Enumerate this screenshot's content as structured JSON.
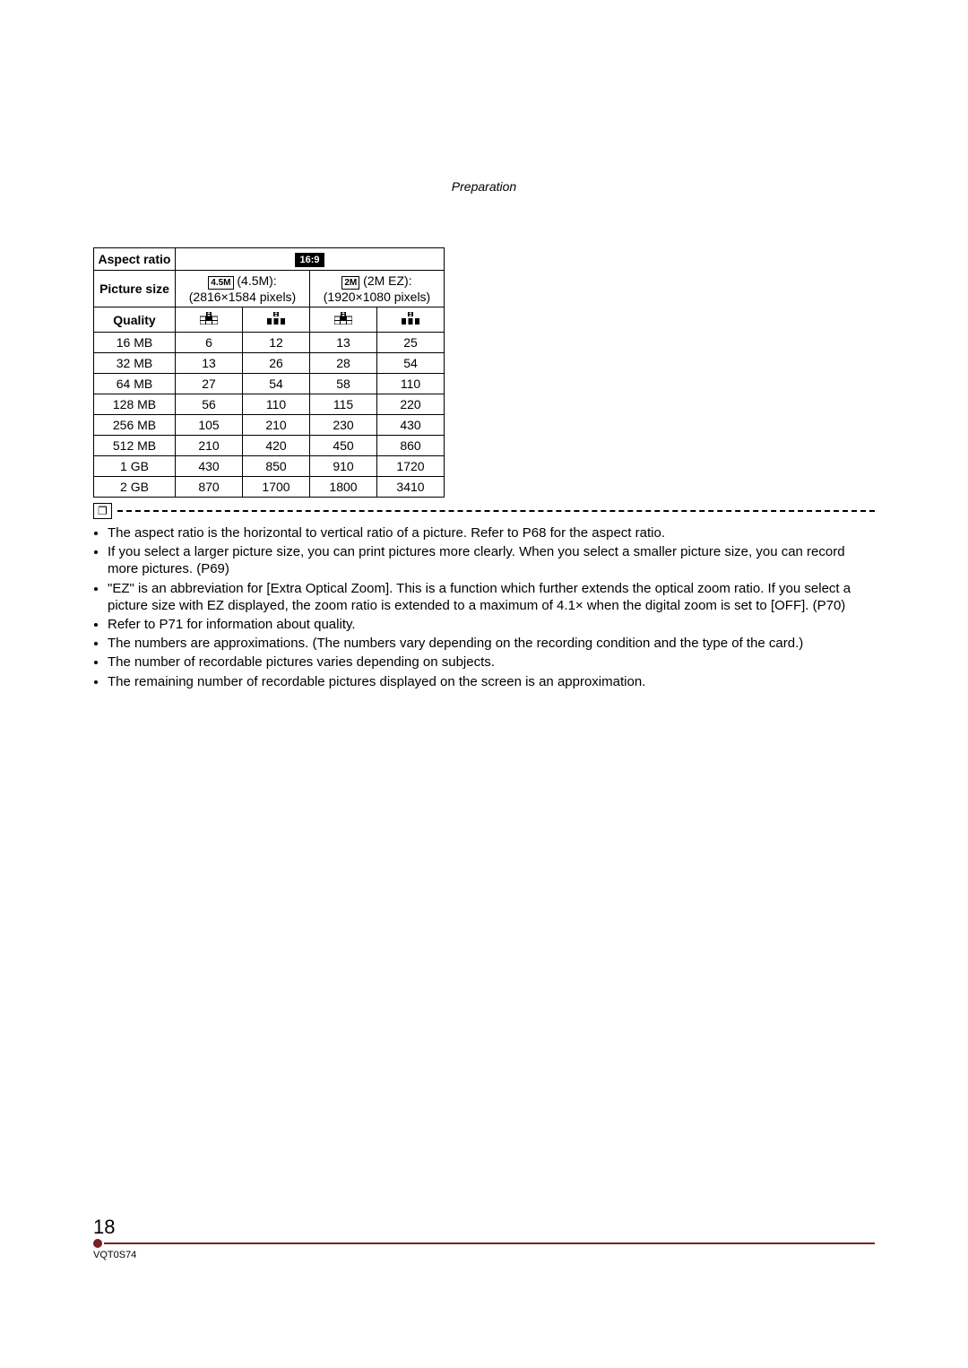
{
  "section_header": "Preparation",
  "table": {
    "headers": {
      "aspect_ratio": "Aspect ratio",
      "picture_size": "Picture size",
      "quality": "Quality"
    },
    "aspect_ratio_badge": "16:9",
    "size_a": {
      "icon": "4.5M",
      "label": "(4.5M):",
      "pixels": "(2816×1584 pixels)"
    },
    "size_b": {
      "icon": "2M",
      "label": "(2M EZ):",
      "pixels": "(1920×1080 pixels)"
    },
    "rows": [
      {
        "cap": "16 MB",
        "a_fine": "6",
        "a_std": "12",
        "b_fine": "13",
        "b_std": "25"
      },
      {
        "cap": "32 MB",
        "a_fine": "13",
        "a_std": "26",
        "b_fine": "28",
        "b_std": "54"
      },
      {
        "cap": "64 MB",
        "a_fine": "27",
        "a_std": "54",
        "b_fine": "58",
        "b_std": "110"
      },
      {
        "cap": "128 MB",
        "a_fine": "56",
        "a_std": "110",
        "b_fine": "115",
        "b_std": "220"
      },
      {
        "cap": "256 MB",
        "a_fine": "105",
        "a_std": "210",
        "b_fine": "230",
        "b_std": "430"
      },
      {
        "cap": "512 MB",
        "a_fine": "210",
        "a_std": "420",
        "b_fine": "450",
        "b_std": "860"
      },
      {
        "cap": "1 GB",
        "a_fine": "430",
        "a_std": "850",
        "b_fine": "910",
        "b_std": "1720"
      },
      {
        "cap": "2 GB",
        "a_fine": "870",
        "a_std": "1700",
        "b_fine": "1800",
        "b_std": "3410"
      }
    ]
  },
  "notes": [
    "The aspect ratio is the horizontal to vertical ratio of a picture. Refer to P68 for the aspect ratio.",
    "If you select a larger picture size, you can print pictures more clearly. When you select a smaller picture size, you can record more pictures. (P69)",
    "\"EZ\" is an abbreviation for [Extra Optical Zoom]. This is a function which further extends the optical zoom ratio. If you select a picture size with EZ displayed, the zoom ratio is extended to a maximum of 4.1× when the digital zoom is set to [OFF]. (P70)",
    "Refer to P71 for information about quality.",
    "The numbers are approximations. (The numbers vary depending on the recording condition and the type of the card.)",
    "The number of recordable pictures varies depending on subjects.",
    "The remaining number of recordable pictures displayed on the screen is an approximation."
  ],
  "page_number": "18",
  "doc_code": "VQT0S74"
}
